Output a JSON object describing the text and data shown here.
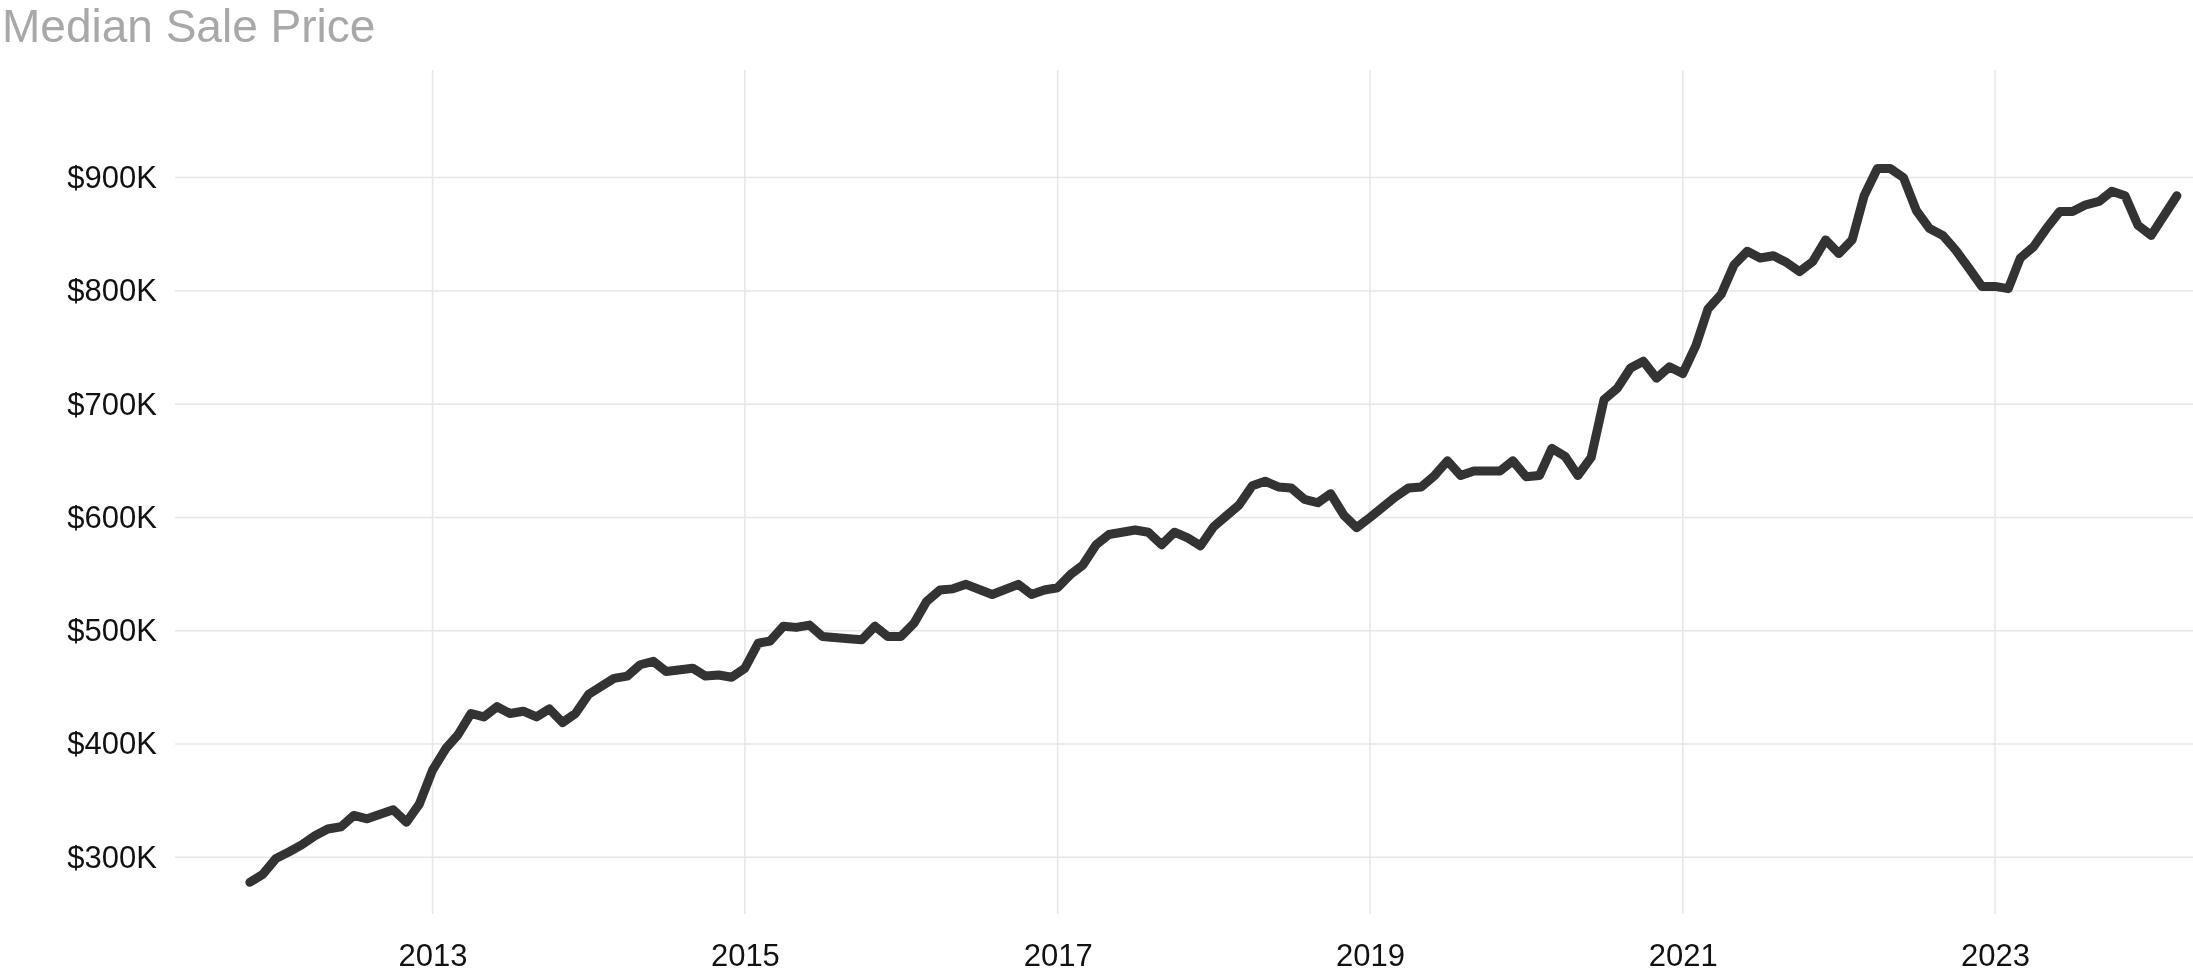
{
  "chart_data": {
    "type": "line",
    "title": "Median Sale Price",
    "x": [
      "2011-11",
      "2011-12",
      "2012-01",
      "2012-02",
      "2012-03",
      "2012-04",
      "2012-05",
      "2012-06",
      "2012-07",
      "2012-08",
      "2012-10",
      "2012-11",
      "2012-12",
      "2013-01",
      "2013-02",
      "2013-03",
      "2013-04",
      "2013-05",
      "2013-06",
      "2013-07",
      "2013-08",
      "2013-09",
      "2013-10",
      "2013-11",
      "2013-12",
      "2014-01",
      "2014-03",
      "2014-04",
      "2014-05",
      "2014-06",
      "2014-07",
      "2014-09",
      "2014-10",
      "2014-11",
      "2014-12",
      "2015-01",
      "2015-02",
      "2015-03",
      "2015-04",
      "2015-05",
      "2015-06",
      "2015-07",
      "2015-09",
      "2015-10",
      "2015-11",
      "2015-12",
      "2016-01",
      "2016-02",
      "2016-03",
      "2016-04",
      "2016-05",
      "2016-06",
      "2016-08",
      "2016-10",
      "2016-11",
      "2016-12",
      "2017-01",
      "2017-02",
      "2017-03",
      "2017-04",
      "2017-05",
      "2017-07",
      "2017-08",
      "2017-09",
      "2017-10",
      "2017-11",
      "2017-12",
      "2018-01",
      "2018-02",
      "2018-03",
      "2018-04",
      "2018-05",
      "2018-06",
      "2018-07",
      "2018-08",
      "2018-09",
      "2018-10",
      "2018-11",
      "2018-12",
      "2019-01",
      "2019-03",
      "2019-04",
      "2019-05",
      "2019-06",
      "2019-07",
      "2019-08",
      "2019-09",
      "2019-11",
      "2019-12",
      "2020-01",
      "2020-02",
      "2020-03",
      "2020-04",
      "2020-05",
      "2020-06",
      "2020-07",
      "2020-08",
      "2020-09",
      "2020-10",
      "2020-11",
      "2020-12",
      "2021-01",
      "2021-02",
      "2021-03",
      "2021-04",
      "2021-05",
      "2021-06",
      "2021-07",
      "2021-08",
      "2021-09",
      "2021-10",
      "2021-11",
      "2021-12",
      "2022-01",
      "2022-02",
      "2022-03",
      "2022-04",
      "2022-05",
      "2022-06",
      "2022-07",
      "2022-08",
      "2022-09",
      "2022-10",
      "2022-11",
      "2022-12",
      "2023-01",
      "2023-02",
      "2023-03",
      "2023-04",
      "2023-05",
      "2023-06",
      "2023-07",
      "2023-08",
      "2023-09",
      "2023-10",
      "2023-11",
      "2023-12",
      "2024-01",
      "2024-03"
    ],
    "series": [
      {
        "color": "#333333",
        "values": [
          278000,
          285000,
          299000,
          305000,
          311000,
          319000,
          325000,
          327000,
          337000,
          334000,
          342000,
          331000,
          347000,
          377000,
          396000,
          408000,
          427000,
          424000,
          433000,
          427000,
          429000,
          424000,
          431000,
          419000,
          427000,
          444000,
          458000,
          460000,
          470000,
          473000,
          464000,
          467000,
          460000,
          461000,
          459000,
          467000,
          489000,
          491000,
          504000,
          503000,
          505000,
          495000,
          493000,
          492000,
          504000,
          495000,
          495000,
          507000,
          526000,
          536000,
          537000,
          541000,
          532000,
          541000,
          532000,
          536000,
          538000,
          550000,
          558000,
          576000,
          585000,
          589000,
          587000,
          576000,
          587000,
          582000,
          575000,
          592000,
          602000,
          611000,
          628000,
          632000,
          627000,
          626000,
          616000,
          613000,
          621000,
          602000,
          591000,
          600000,
          618000,
          626000,
          627000,
          637000,
          650000,
          637000,
          641000,
          641000,
          650000,
          636000,
          637000,
          661000,
          654000,
          637000,
          653000,
          704000,
          714000,
          732000,
          738000,
          723000,
          733000,
          727000,
          752000,
          784000,
          797000,
          823000,
          835000,
          829000,
          831000,
          825000,
          817000,
          826000,
          845000,
          833000,
          845000,
          884000,
          908000,
          908000,
          900000,
          871000,
          855000,
          849000,
          836000,
          820000,
          804000,
          804000,
          802000,
          829000,
          839000,
          855000,
          870000,
          870000,
          876000,
          879000,
          888000,
          884000,
          858000,
          849000,
          884000
        ]
      }
    ],
    "xlim": [
      "2011-05-10",
      "2024-03-20"
    ],
    "xticks": [
      {
        "value": "2013-01-01",
        "label": "2013"
      },
      {
        "value": "2015-01-01",
        "label": "2015"
      },
      {
        "value": "2017-01-01",
        "label": "2017"
      },
      {
        "value": "2019-01-01",
        "label": "2019"
      },
      {
        "value": "2021-01-01",
        "label": "2021"
      },
      {
        "value": "2023-01-01",
        "label": "2023"
      }
    ],
    "ylim": [
      250000,
      995000
    ],
    "yticks": [
      {
        "value": 300000,
        "label": "$300K"
      },
      {
        "value": 400000,
        "label": "$400K"
      },
      {
        "value": 500000,
        "label": "$500K"
      },
      {
        "value": 600000,
        "label": "$600K"
      },
      {
        "value": 700000,
        "label": "$700K"
      },
      {
        "value": 800000,
        "label": "$800K"
      },
      {
        "value": 900000,
        "label": "$900K"
      }
    ],
    "grid": true,
    "marker": "none",
    "line_style": "solid"
  }
}
